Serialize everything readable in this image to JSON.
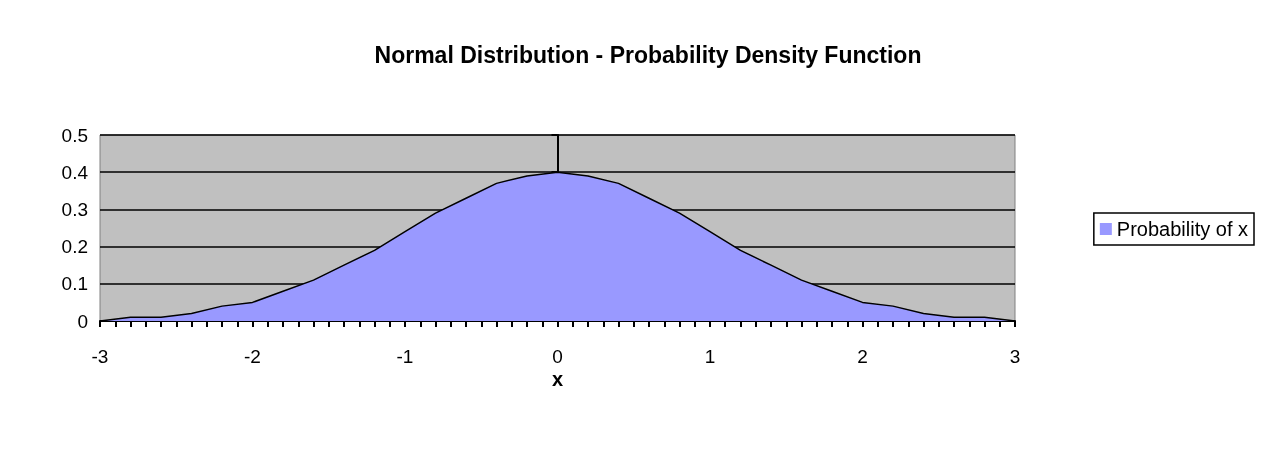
{
  "chart_data": {
    "type": "area",
    "title": "Normal Distribution - Probability Density Function",
    "xlabel": "x",
    "x": [
      -3,
      -2.8,
      -2.6,
      -2.4,
      -2.2,
      -2,
      -1.8,
      -1.6,
      -1.4,
      -1.2,
      -1,
      -0.8,
      -0.6,
      -0.4,
      -0.2,
      0,
      0.2,
      0.4,
      0.6,
      0.8,
      1,
      1.2,
      1.4,
      1.6,
      1.8,
      2,
      2.2,
      2.4,
      2.6,
      2.8,
      3
    ],
    "series": [
      {
        "name": "Probability of x",
        "color": "#9999ff",
        "values": [
          0.0,
          0.01,
          0.01,
          0.02,
          0.04,
          0.05,
          0.08,
          0.11,
          0.15,
          0.19,
          0.24,
          0.29,
          0.33,
          0.37,
          0.39,
          0.4,
          0.39,
          0.37,
          0.33,
          0.29,
          0.24,
          0.19,
          0.15,
          0.11,
          0.08,
          0.05,
          0.04,
          0.02,
          0.01,
          0.01,
          0.0
        ]
      }
    ],
    "xlim": [
      -3,
      3
    ],
    "xticks": [
      -3,
      -2,
      -1,
      0,
      1,
      2,
      3
    ],
    "ylim": [
      0,
      0.5
    ],
    "yticks": [
      0,
      0.1,
      0.2,
      0.3,
      0.4,
      0.5
    ],
    "grid": "y",
    "legend": "right",
    "marker": "none",
    "line_style": "solid"
  }
}
